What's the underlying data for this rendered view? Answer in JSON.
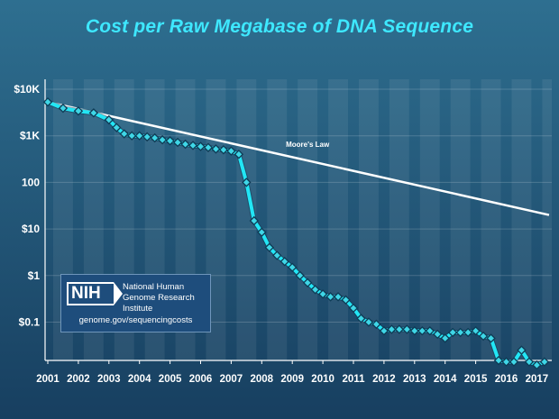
{
  "chart_data": {
    "type": "line",
    "title": "Cost per Raw Megabase of DNA Sequence",
    "xlabel": "",
    "ylabel": "",
    "yscale": "log",
    "ylim": [
      0.01,
      10000
    ],
    "xlim": [
      2001,
      2017.4
    ],
    "yticks": [
      {
        "value": 10000,
        "label": "$10K"
      },
      {
        "value": 1000,
        "label": "$1K"
      },
      {
        "value": 100,
        "label": "100"
      },
      {
        "value": 10,
        "label": "$10"
      },
      {
        "value": 1,
        "label": "$1"
      },
      {
        "value": 0.1,
        "label": "$0.1"
      }
    ],
    "xticks": [
      "2001",
      "2002",
      "2003",
      "2004",
      "2005",
      "2006",
      "2007",
      "2008",
      "2009",
      "2010",
      "2011",
      "2012",
      "2013",
      "2014",
      "2015",
      "2016",
      "2017"
    ],
    "series": [
      {
        "name": "Cost per Raw Megabase",
        "color": "#22e6f5",
        "x": [
          2001.0,
          2001.5,
          2002.0,
          2002.5,
          2003.0,
          2003.25,
          2003.5,
          2003.75,
          2004.0,
          2004.25,
          2004.5,
          2004.75,
          2005.0,
          2005.25,
          2005.5,
          2005.75,
          2006.0,
          2006.25,
          2006.5,
          2006.75,
          2007.0,
          2007.25,
          2007.5,
          2007.75,
          2008.0,
          2008.25,
          2008.5,
          2008.75,
          2009.0,
          2009.25,
          2009.5,
          2009.75,
          2010.0,
          2010.25,
          2010.5,
          2010.75,
          2011.0,
          2011.25,
          2011.5,
          2011.75,
          2012.0,
          2012.25,
          2012.5,
          2012.75,
          2013.0,
          2013.25,
          2013.5,
          2013.75,
          2014.0,
          2014.25,
          2014.5,
          2014.75,
          2015.0,
          2015.25,
          2015.5,
          2015.75,
          2016.0,
          2016.25,
          2016.5,
          2016.75,
          2017.0,
          2017.25
        ],
        "values": [
          5300,
          3900,
          3400,
          3100,
          2200,
          1500,
          1100,
          1000,
          1000,
          950,
          900,
          820,
          780,
          720,
          660,
          620,
          590,
          560,
          520,
          500,
          470,
          400,
          100,
          15,
          8.5,
          4.0,
          2.7,
          2.0,
          1.5,
          1.0,
          0.7,
          0.5,
          0.4,
          0.35,
          0.35,
          0.3,
          0.2,
          0.12,
          0.1,
          0.09,
          0.065,
          0.07,
          0.07,
          0.07,
          0.065,
          0.065,
          0.065,
          0.055,
          0.045,
          0.06,
          0.06,
          0.06,
          0.065,
          0.05,
          0.045,
          0.015,
          0.014,
          0.014,
          0.025,
          0.014,
          0.012,
          0.014
        ]
      },
      {
        "name": "Moore's Law",
        "color": "#ffffff",
        "x": [
          2001.0,
          2017.4
        ],
        "values": [
          5300,
          20
        ]
      }
    ],
    "annotations": [
      {
        "text": "Moore's Law",
        "x": 2009.5,
        "y": 580
      }
    ]
  },
  "logo": {
    "mark": "NIH",
    "org_name": "National Human Genome Research Institute",
    "url": "genome.gov/sequencingcosts"
  }
}
